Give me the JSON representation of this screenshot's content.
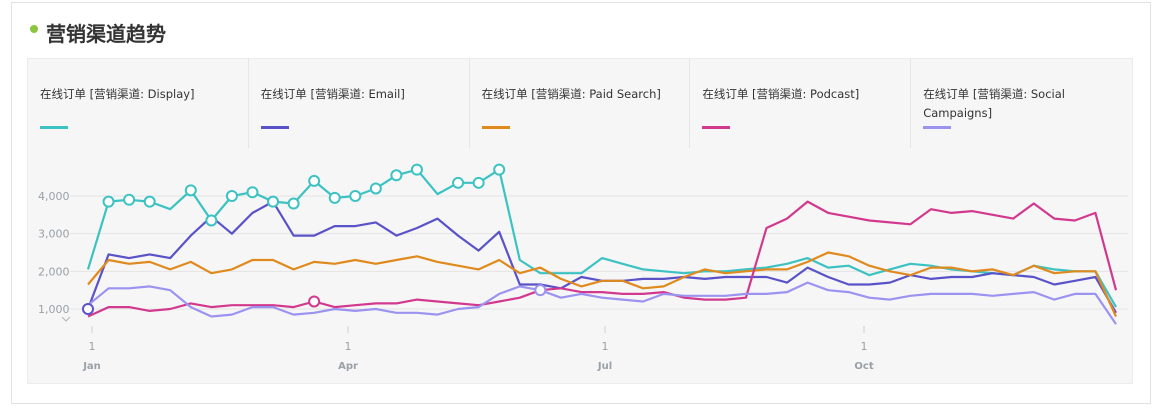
{
  "header": {
    "title": "营销渠道趋势"
  },
  "colors": {
    "title_dot": "#8cc63f",
    "series": [
      "#3cc2c2",
      "#5a52c8",
      "#e08a1e",
      "#d2398e",
      "#9b93f0"
    ]
  },
  "chart_data": {
    "type": "line",
    "title": "营销渠道趋势",
    "xlabel": "",
    "ylabel": "",
    "ylim": [
      800,
      4800
    ],
    "y_ticks": [
      "1,000",
      "2,000",
      "3,000",
      "4,000"
    ],
    "y_tick_values": [
      1000,
      2000,
      3000,
      4000
    ],
    "x_ticks": [
      {
        "day": "1",
        "month": "Jan"
      },
      {
        "day": "1",
        "month": "Apr"
      },
      {
        "day": "1",
        "month": "Jul"
      },
      {
        "day": "1",
        "month": "Oct"
      }
    ],
    "x_range": [
      "Jan 1",
      "Dec 31"
    ],
    "grid": true,
    "legend_position": "top",
    "series": [
      {
        "name": "在线订单 [营销渠道: Display]",
        "values": [
          2050,
          3850,
          3900,
          3850,
          3650,
          4150,
          3350,
          4000,
          4100,
          3850,
          3800,
          4400,
          3950,
          4000,
          4200,
          4550,
          4700,
          4050,
          4350,
          4350,
          4700,
          2300,
          1950,
          1950,
          1950,
          2350,
          2200,
          2050,
          2000,
          1950,
          2000,
          2000,
          2050,
          2100,
          2200,
          2350,
          2100,
          2150,
          1900,
          2050,
          2200,
          2150,
          2050,
          2000,
          1950,
          1900,
          2150,
          2050,
          2000,
          2000,
          1050
        ]
      },
      {
        "name": "在线订单 [营销渠道: Email]",
        "values": [
          1000,
          2450,
          2350,
          2450,
          2350,
          2950,
          3450,
          3000,
          3550,
          3850,
          2950,
          2950,
          3200,
          3200,
          3300,
          2950,
          3150,
          3400,
          2950,
          2550,
          3050,
          1650,
          1650,
          1550,
          1850,
          1750,
          1750,
          1800,
          1800,
          1850,
          1800,
          1850,
          1850,
          1850,
          1700,
          2100,
          1850,
          1650,
          1650,
          1700,
          1900,
          1800,
          1850,
          1850,
          1950,
          1900,
          1850,
          1650,
          1750,
          1850,
          900
        ]
      },
      {
        "name": "在线订单 [营销渠道: Paid Search]",
        "values": [
          1650,
          2300,
          2200,
          2250,
          2050,
          2250,
          1950,
          2050,
          2300,
          2300,
          2050,
          2250,
          2200,
          2300,
          2200,
          2300,
          2400,
          2250,
          2150,
          2050,
          2300,
          1950,
          2100,
          1800,
          1600,
          1750,
          1750,
          1550,
          1600,
          1850,
          2050,
          1950,
          2000,
          2050,
          2050,
          2250,
          2500,
          2400,
          2150,
          2000,
          1900,
          2100,
          2100,
          2000,
          2050,
          1900,
          2150,
          1950,
          2000,
          2000,
          800
        ]
      },
      {
        "name": "在线订单 [营销渠道: Podcast]",
        "values": [
          800,
          1050,
          1050,
          950,
          1000,
          1150,
          1050,
          1100,
          1100,
          1100,
          1050,
          1200,
          1050,
          1100,
          1150,
          1150,
          1250,
          1200,
          1150,
          1100,
          1200,
          1300,
          1500,
          1550,
          1450,
          1450,
          1400,
          1400,
          1450,
          1300,
          1250,
          1250,
          1300,
          3150,
          3400,
          3850,
          3550,
          3450,
          3350,
          3300,
          3250,
          3650,
          3550,
          3600,
          3500,
          3400,
          3800,
          3400,
          3350,
          3550,
          1500
        ]
      },
      {
        "name": "在线订单 [营销渠道: Social Campaigns]",
        "values": [
          1100,
          1550,
          1550,
          1600,
          1500,
          1050,
          800,
          850,
          1050,
          1050,
          850,
          900,
          1000,
          950,
          1000,
          900,
          900,
          850,
          1000,
          1050,
          1400,
          1600,
          1500,
          1300,
          1400,
          1300,
          1250,
          1200,
          1400,
          1350,
          1350,
          1350,
          1400,
          1400,
          1450,
          1700,
          1500,
          1450,
          1300,
          1250,
          1350,
          1400,
          1400,
          1400,
          1350,
          1400,
          1450,
          1250,
          1400,
          1400,
          600
        ]
      }
    ],
    "markers": [
      {
        "series": 0,
        "index": 1
      },
      {
        "series": 0,
        "index": 2
      },
      {
        "series": 0,
        "index": 3
      },
      {
        "series": 0,
        "index": 5
      },
      {
        "series": 0,
        "index": 6
      },
      {
        "series": 0,
        "index": 7
      },
      {
        "series": 0,
        "index": 8
      },
      {
        "series": 0,
        "index": 9
      },
      {
        "series": 0,
        "index": 10
      },
      {
        "series": 0,
        "index": 11
      },
      {
        "series": 0,
        "index": 12
      },
      {
        "series": 0,
        "index": 13
      },
      {
        "series": 0,
        "index": 14
      },
      {
        "series": 0,
        "index": 15
      },
      {
        "series": 0,
        "index": 16
      },
      {
        "series": 0,
        "index": 18
      },
      {
        "series": 0,
        "index": 19
      },
      {
        "series": 0,
        "index": 20
      },
      {
        "series": 1,
        "index": 0
      },
      {
        "series": 3,
        "index": 11
      },
      {
        "series": 4,
        "index": 22
      }
    ]
  }
}
